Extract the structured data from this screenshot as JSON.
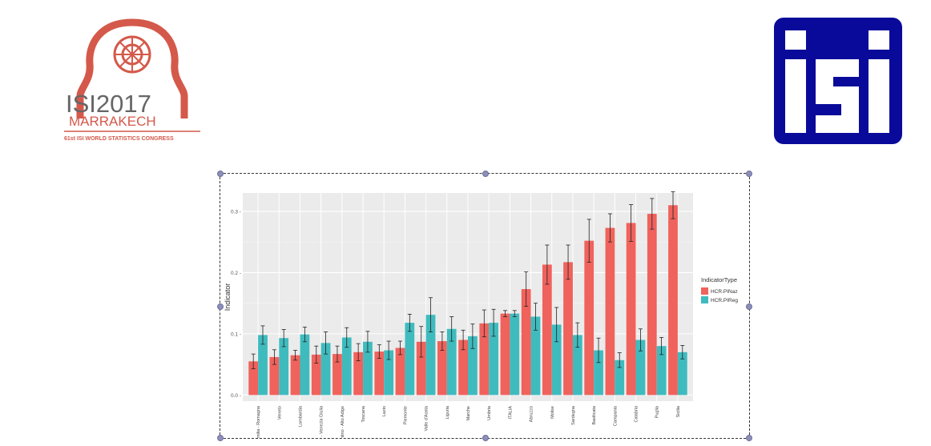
{
  "logos": {
    "left": {
      "line1": "ISI2017",
      "line2": "MARRAKECH",
      "line3": "61st ISI WORLD STATISTICS CONGRESS"
    },
    "right": {
      "text": "isi"
    }
  },
  "colors": {
    "nazionale": "#f0625c",
    "regionale": "#3fbbbe",
    "panel": "#ebebeb",
    "isi_blue": "#0a0a9a",
    "isi2017_red": "#d4594a"
  },
  "chart_data": {
    "type": "bar",
    "title": "",
    "xlabel": "",
    "ylabel": "Indicator",
    "ylim": [
      -0.01,
      0.33
    ],
    "yticks": [
      0.0,
      0.1,
      0.2,
      0.3
    ],
    "ytick_labels": [
      "0.0 -",
      "0.1 -",
      "0.2 -",
      "0.3 -"
    ],
    "legend_position": "right",
    "legend_title": "IndicatorType",
    "categories": [
      "Emilia - Romagna",
      "Veneto",
      "Lombardia",
      "Friuli - Venezia Giulia",
      "Trentino - Alto Adige",
      "Toscana",
      "Lazio",
      "Piemonte",
      "Valle d'Aosta",
      "Liguria",
      "Marche",
      "Umbria",
      "ITALIA",
      "Abruzzo",
      "Molise",
      "Sardegna",
      "Basilicata",
      "Campania",
      "Calabria",
      "Puglia",
      "Sicilia"
    ],
    "series": [
      {
        "name": "HCR.PINaz",
        "values": [
          0.055,
          0.062,
          0.065,
          0.066,
          0.067,
          0.07,
          0.071,
          0.077,
          0.087,
          0.088,
          0.09,
          0.117,
          0.133,
          0.173,
          0.213,
          0.217,
          0.252,
          0.273,
          0.281,
          0.296,
          0.31
        ],
        "errors": [
          0.012,
          0.012,
          0.008,
          0.014,
          0.013,
          0.014,
          0.011,
          0.011,
          0.025,
          0.015,
          0.016,
          0.022,
          0.005,
          0.028,
          0.032,
          0.028,
          0.035,
          0.023,
          0.03,
          0.025,
          0.022
        ]
      },
      {
        "name": "HCR.PIReg",
        "values": [
          0.098,
          0.093,
          0.099,
          0.085,
          0.094,
          0.087,
          0.073,
          0.118,
          0.131,
          0.108,
          0.096,
          0.118,
          0.133,
          0.128,
          0.115,
          0.098,
          0.073,
          0.057,
          0.09,
          0.08,
          0.07
        ],
        "errors": [
          0.015,
          0.014,
          0.012,
          0.018,
          0.016,
          0.017,
          0.015,
          0.014,
          0.028,
          0.02,
          0.02,
          0.022,
          0.005,
          0.022,
          0.028,
          0.02,
          0.02,
          0.012,
          0.018,
          0.014,
          0.011
        ]
      }
    ]
  }
}
